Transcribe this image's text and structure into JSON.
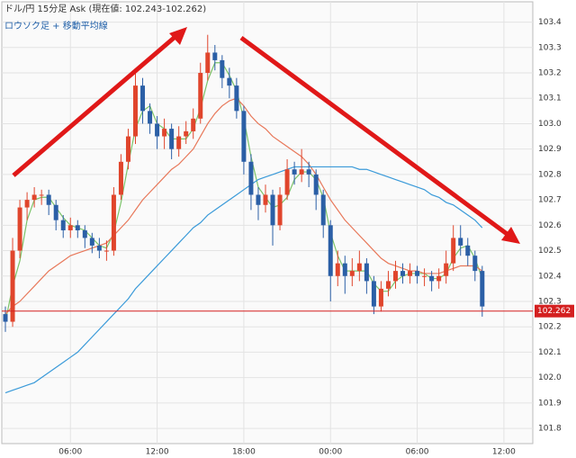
{
  "chart_data": {
    "type": "candlestick",
    "title": "ドル/円 15分足 Ask (現在値: 102.243-102.262)",
    "subtitle": "ロウソク足 + 移動平均線",
    "categories": [
      null,
      null,
      null,
      null,
      null,
      null,
      null,
      null,
      null,
      null,
      null,
      null,
      null,
      null,
      null,
      null,
      null,
      null,
      null,
      null,
      null,
      null,
      null,
      null,
      null,
      null,
      null,
      null,
      null,
      null,
      null,
      null,
      null,
      null,
      null,
      null,
      null,
      null,
      null,
      null,
      null,
      null,
      null,
      null,
      null,
      null,
      null,
      null,
      null,
      null,
      null,
      null,
      null,
      null,
      null,
      null,
      null,
      null,
      null,
      null,
      null,
      null,
      null,
      null,
      null,
      null,
      null
    ],
    "open": [
      102.25,
      102.22,
      102.5,
      102.67,
      102.7,
      102.72,
      102.72,
      102.68,
      102.62,
      102.58,
      102.6,
      102.58,
      102.55,
      102.52,
      102.5,
      102.5,
      102.72,
      102.85,
      102.95,
      103.15,
      103.05,
      103.0,
      102.95,
      102.98,
      102.9,
      102.95,
      102.97,
      103.02,
      103.2,
      103.28,
      103.25,
      103.18,
      103.15,
      103.05,
      102.85,
      102.72,
      102.68,
      102.72,
      102.6,
      102.72,
      102.82,
      102.8,
      102.82,
      102.8,
      102.72,
      102.6,
      102.4,
      102.45,
      102.4,
      102.42,
      102.45,
      102.38,
      102.28,
      102.35,
      102.38,
      102.42,
      102.4,
      102.42,
      102.4,
      102.4,
      102.38,
      102.4,
      102.45,
      102.55,
      102.52,
      102.48,
      102.42
    ],
    "high": [
      102.28,
      102.55,
      102.7,
      102.73,
      102.75,
      102.74,
      102.74,
      102.7,
      102.64,
      102.63,
      102.62,
      102.6,
      102.57,
      102.55,
      102.54,
      102.75,
      102.88,
      102.98,
      103.2,
      103.18,
      103.08,
      103.03,
      103.02,
      103.0,
      102.99,
      103.01,
      103.06,
      103.24,
      103.35,
      103.31,
      103.27,
      103.22,
      103.18,
      103.07,
      102.88,
      102.75,
      102.76,
      102.74,
      102.75,
      102.86,
      102.85,
      102.9,
      102.85,
      102.82,
      102.74,
      102.62,
      102.5,
      102.48,
      102.47,
      102.5,
      102.47,
      102.4,
      102.38,
      102.42,
      102.46,
      102.45,
      102.45,
      102.44,
      102.43,
      102.42,
      102.43,
      102.5,
      102.6,
      102.6,
      102.55,
      102.5,
      102.44
    ],
    "low": [
      102.18,
      102.2,
      102.47,
      102.62,
      102.67,
      102.68,
      102.64,
      102.58,
      102.55,
      102.55,
      102.55,
      102.51,
      102.49,
      102.47,
      102.46,
      102.48,
      102.7,
      102.82,
      102.92,
      103.0,
      102.96,
      102.9,
      102.9,
      102.86,
      102.87,
      102.92,
      102.94,
      103.0,
      103.17,
      103.21,
      103.14,
      103.1,
      103.02,
      102.8,
      102.66,
      102.62,
      102.65,
      102.52,
      102.58,
      102.7,
      102.76,
      102.77,
      102.75,
      102.66,
      102.55,
      102.3,
      102.36,
      102.33,
      102.36,
      102.38,
      102.33,
      102.25,
      102.26,
      102.32,
      102.35,
      102.37,
      102.37,
      102.37,
      102.36,
      102.34,
      102.35,
      102.37,
      102.42,
      102.48,
      102.44,
      102.38,
      102.24
    ],
    "close": [
      102.22,
      102.5,
      102.67,
      102.7,
      102.72,
      102.72,
      102.68,
      102.62,
      102.58,
      102.6,
      102.58,
      102.55,
      102.52,
      102.5,
      102.5,
      102.72,
      102.85,
      102.95,
      103.15,
      103.05,
      103.0,
      102.95,
      102.98,
      102.9,
      102.95,
      102.97,
      103.02,
      103.2,
      103.28,
      103.25,
      103.18,
      103.15,
      103.05,
      102.85,
      102.72,
      102.68,
      102.72,
      102.6,
      102.72,
      102.82,
      102.8,
      102.82,
      102.8,
      102.72,
      102.6,
      102.4,
      102.45,
      102.4,
      102.42,
      102.45,
      102.38,
      102.28,
      102.35,
      102.38,
      102.42,
      102.4,
      102.42,
      102.4,
      102.4,
      102.38,
      102.4,
      102.45,
      102.55,
      102.52,
      102.48,
      102.42,
      102.28
    ],
    "up_color": "#e0452c",
    "down_color": "#2b5fa6",
    "lines": [
      {
        "color": "#7cc46a",
        "values": [
          102.22,
          102.36,
          102.46,
          102.62,
          102.7,
          102.71,
          102.71,
          102.67,
          102.63,
          102.6,
          102.59,
          102.58,
          102.55,
          102.52,
          102.51,
          102.57,
          102.69,
          102.84,
          102.98,
          103.05,
          103.07,
          103.0,
          102.98,
          102.94,
          102.94,
          102.94,
          102.98,
          103.06,
          103.17,
          103.24,
          103.24,
          103.19,
          103.13,
          103.02,
          102.87,
          102.75,
          102.71,
          102.67,
          102.68,
          102.71,
          102.78,
          102.81,
          102.81,
          102.78,
          102.71,
          102.57,
          102.48,
          102.42,
          102.42,
          102.42,
          102.42,
          102.37,
          102.34,
          102.34,
          102.38,
          102.4,
          102.41,
          102.41,
          102.41,
          102.39,
          102.39,
          102.41,
          102.47,
          102.51,
          102.52,
          102.47,
          102.39
        ]
      },
      {
        "color": "#e8785a",
        "values": [
          102.25,
          102.28,
          102.3,
          102.33,
          102.36,
          102.39,
          102.42,
          102.44,
          102.46,
          102.48,
          102.49,
          102.5,
          102.51,
          102.52,
          102.53,
          102.56,
          102.59,
          102.62,
          102.66,
          102.7,
          102.73,
          102.76,
          102.79,
          102.82,
          102.84,
          102.87,
          102.9,
          102.95,
          103.0,
          103.04,
          103.07,
          103.09,
          103.1,
          103.07,
          103.03,
          103.0,
          102.98,
          102.95,
          102.93,
          102.91,
          102.89,
          102.87,
          102.84,
          102.8,
          102.75,
          102.7,
          102.66,
          102.62,
          102.59,
          102.56,
          102.53,
          102.5,
          102.47,
          102.45,
          102.44,
          102.43,
          102.42,
          102.42,
          102.41,
          102.41,
          102.41,
          102.42,
          102.43,
          102.44,
          102.44,
          102.44,
          102.42
        ]
      },
      {
        "color": "#3a9ad9",
        "values": [
          101.94,
          101.95,
          101.96,
          101.97,
          101.98,
          102.0,
          102.02,
          102.04,
          102.06,
          102.08,
          102.1,
          102.13,
          102.16,
          102.19,
          102.22,
          102.25,
          102.28,
          102.31,
          102.35,
          102.38,
          102.41,
          102.44,
          102.47,
          102.5,
          102.53,
          102.56,
          102.59,
          102.61,
          102.64,
          102.66,
          102.68,
          102.7,
          102.72,
          102.74,
          102.76,
          102.78,
          102.79,
          102.8,
          102.81,
          102.82,
          102.83,
          102.83,
          102.83,
          102.83,
          102.83,
          102.83,
          102.83,
          102.83,
          102.83,
          102.82,
          102.82,
          102.81,
          102.8,
          102.79,
          102.78,
          102.77,
          102.76,
          102.75,
          102.74,
          102.72,
          102.71,
          102.69,
          102.68,
          102.66,
          102.64,
          102.62,
          102.59
        ]
      }
    ],
    "price_line": {
      "value": 102.262,
      "color": "#d42020"
    },
    "xlim": [
      -0.5,
      73
    ],
    "xticks": [
      {
        "value": 9,
        "label": "06:00"
      },
      {
        "value": 21,
        "label": "12:00"
      },
      {
        "value": 33,
        "label": "18:00"
      },
      {
        "value": 45,
        "label": "00:00"
      },
      {
        "value": 57,
        "label": "06:00"
      },
      {
        "value": 69,
        "label": "12:00"
      }
    ],
    "ylim": [
      101.74,
      103.48
    ],
    "yticks": [
      101.8,
      101.9,
      {
        "value": 102.0,
        "label": "102.0"
      },
      102.1,
      102.2,
      102.3,
      102.4,
      102.5,
      102.6,
      102.7,
      102.8,
      102.9,
      {
        "value": 103.0,
        "label": "103.0"
      },
      103.1,
      103.2,
      103.3,
      103.4
    ],
    "grid": true
  }
}
